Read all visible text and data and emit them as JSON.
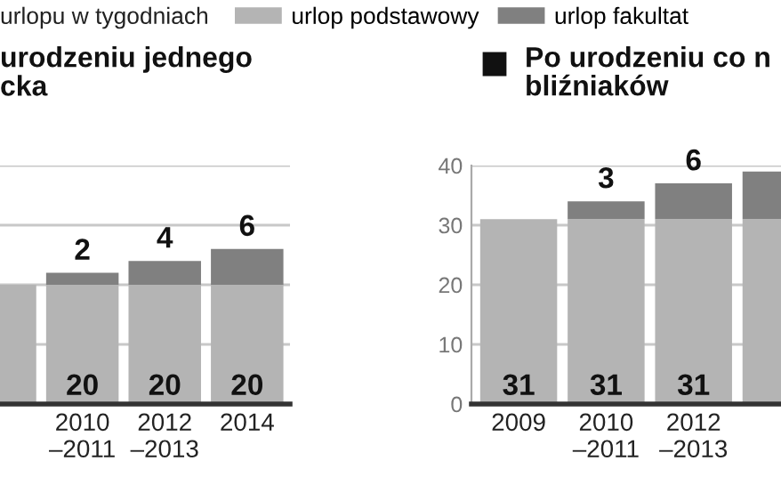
{
  "chart_data": [
    {
      "type": "bar",
      "title": "urodzeniu jednego\ncka",
      "legend_title": "urlopu w tygodniach",
      "categories": [
        null,
        "2010\n–2011",
        "2012\n–2013",
        "2014"
      ],
      "stacked": true,
      "ylim": [
        0,
        40
      ],
      "yticks": [
        {
          "value": 0,
          "label": null
        },
        {
          "value": 10,
          "label": null
        },
        {
          "value": 20,
          "label": null
        },
        {
          "value": 30,
          "label": null
        },
        {
          "value": 40,
          "label": null
        }
      ],
      "tick_labels": "x",
      "grid": "y",
      "legend": "top",
      "series": [
        {
          "name": "urlop podstawowy",
          "color": "#b4b4b4",
          "values": [
            20,
            20,
            20,
            20
          ],
          "value_labels": [
            null,
            "20",
            "20",
            "20"
          ]
        },
        {
          "name": "urlop fakultat",
          "color": "#808080",
          "values": [
            null,
            2,
            4,
            6
          ],
          "value_labels": [
            null,
            "2",
            "4",
            "6"
          ]
        }
      ]
    },
    {
      "type": "bar",
      "title": "Po urodzeniu co n\nbliźniaków",
      "categories": [
        "2009",
        "2010\n–2011",
        "2012\n–2013",
        null
      ],
      "stacked": true,
      "ylim": [
        0,
        40
      ],
      "yticks": [
        0,
        10,
        20,
        30,
        40
      ],
      "grid": "y",
      "series": [
        {
          "color": "#b4b4b4",
          "values": [
            31,
            31,
            31,
            31
          ],
          "value_labels": [
            "31",
            "31",
            "31",
            null
          ]
        },
        {
          "color": "#808080",
          "values": [
            null,
            3,
            6,
            8
          ],
          "value_labels": [
            null,
            "3",
            "6",
            null
          ]
        }
      ]
    }
  ]
}
